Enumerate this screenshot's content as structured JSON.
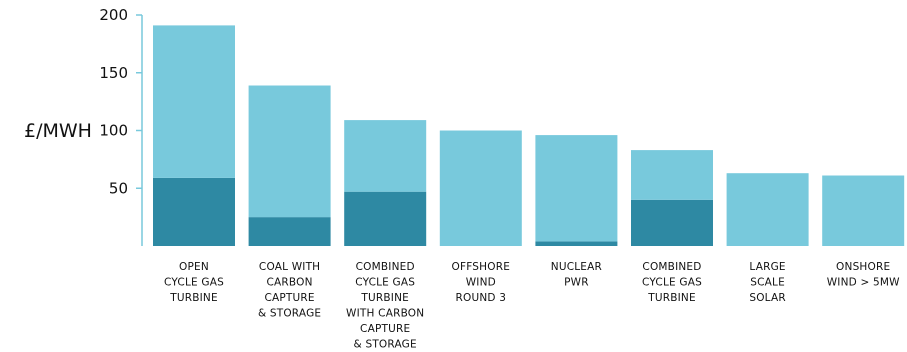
{
  "chart_data": {
    "type": "bar",
    "stacked": true,
    "title": "",
    "xlabel": "",
    "ylabel": "£/MWH",
    "ylim": [
      0,
      200
    ],
    "yticks": [
      50,
      100,
      150,
      200
    ],
    "grid": false,
    "legend": "none",
    "categories": [
      [
        "OPEN",
        "CYCLE GAS",
        "TURBINE"
      ],
      [
        "COAL WITH",
        "CARBON",
        "CAPTURE",
        "& STORAGE"
      ],
      [
        "COMBINED",
        "CYCLE GAS",
        "TURBINE",
        "WITH CARBON",
        "CAPTURE",
        "& STORAGE"
      ],
      [
        "OFFSHORE",
        "WIND",
        "ROUND 3"
      ],
      [
        "NUCLEAR",
        "PWR"
      ],
      [
        "COMBINED",
        "CYCLE GAS",
        "TURBINE"
      ],
      [
        "LARGE",
        "SCALE",
        "SOLAR"
      ],
      [
        "ONSHORE",
        "WIND > 5MW"
      ]
    ],
    "series": [
      {
        "color": "#2e89a3",
        "values": [
          59,
          25,
          47,
          0,
          4,
          40,
          0,
          0
        ]
      },
      {
        "color": "#78c9dc",
        "values": [
          132,
          114,
          62,
          100,
          92,
          43,
          63,
          61
        ]
      }
    ],
    "totals": [
      191,
      139,
      109,
      100,
      96,
      83,
      63,
      61
    ]
  }
}
